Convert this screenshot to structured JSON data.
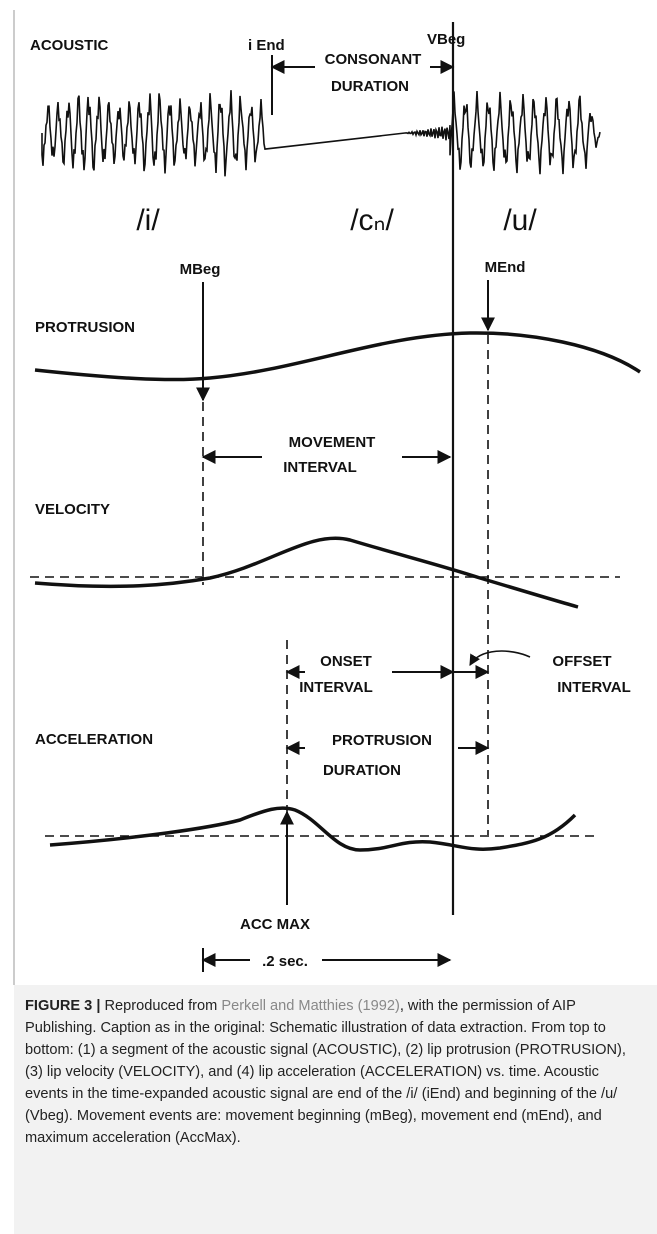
{
  "figure": {
    "labels": {
      "acoustic": "ACOUSTIC",
      "i_end": "i End",
      "v_beg": "VBeg",
      "consonant_duration": [
        "CONSONANT",
        "DURATION"
      ],
      "phoneme_i": "/i/",
      "phoneme_c": "/cₙ/",
      "phoneme_u": "/u/",
      "m_beg": "MBeg",
      "m_end": "MEnd",
      "protrusion": "PROTRUSION",
      "movement_interval": [
        "MOVEMENT",
        "INTERVAL"
      ],
      "velocity": "VELOCITY",
      "onset_interval": [
        "ONSET",
        "INTERVAL"
      ],
      "offset_interval": [
        "OFFSET",
        "INTERVAL"
      ],
      "acceleration": "ACCELERATION",
      "protrusion_duration": [
        "PROTRUSION",
        "DURATION"
      ],
      "acc_max": "ACC MAX",
      "scale": ".2 sec."
    }
  },
  "caption": {
    "label": "FIGURE 3 |",
    "intro": "Reproduced from",
    "link": "Perkell and Matthies (1992)",
    "text": ", with the permission of AIP Publishing. Caption as in the original: Schematic illustration of data extraction. From top to bottom: (1) a segment of the acoustic signal (ACOUSTIC), (2) lip protrusion (PROTRUSION), (3) lip velocity (VELOCITY), and (4) lip acceleration (ACCELERATION) vs. time. Acoustic events in the time-expanded acoustic signal are end of the /i/ (iEnd) and beginning of the /u/ (Vbeg). Movement events are: movement beginning (mBeg), movement end (mEnd), and maximum acceleration (AccMax)."
  }
}
